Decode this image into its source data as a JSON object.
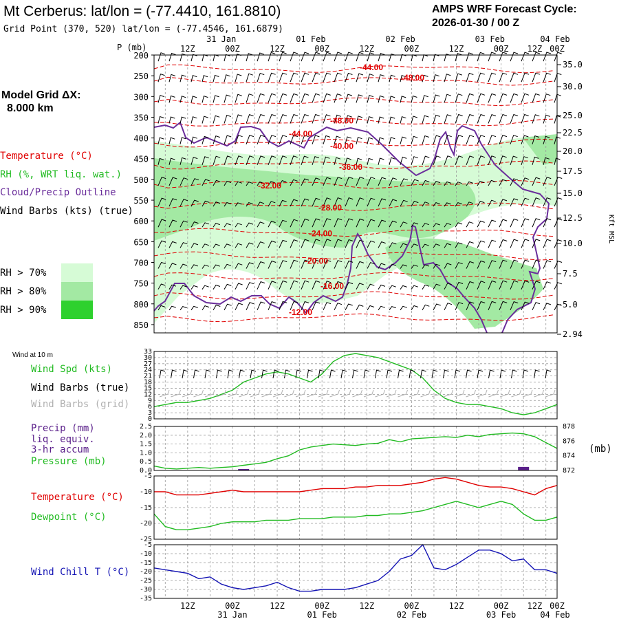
{
  "header": {
    "title": "Mt Cerberus:  lat/lon = (-77.4410, 161.8810)",
    "grid_point": "Grid Point (370, 520) lat/lon = (-77.4546, 161.6879)",
    "cycle_title": "AMPS WRF Forecast Cycle:",
    "cycle_value": "2026-01-30 / 00  Z"
  },
  "model": {
    "label": "Model Grid ΔX:",
    "value": "8.000 km"
  },
  "legend_top": {
    "temperature": "Temperature (°C)",
    "rh": "RH (%, WRT liq. wat.)",
    "cloud": "Cloud/Precip Outline",
    "wind": "Wind Barbs (kts) (true)",
    "rh70": "RH > 70%",
    "rh80": "RH > 80%",
    "rh90": "RH > 90%"
  },
  "colors": {
    "temperature": "#e00000",
    "rh": "#22bb22",
    "cloud": "#6a2d9b",
    "wind": "#000000",
    "grid_wind": "#b0b0b0",
    "precip": "#5a1f8a",
    "chill": "#1414b4",
    "rh70": "#d6fbd6",
    "rh80": "#a3e9a3",
    "rh90": "#2ed12e"
  },
  "time_axis": {
    "top_dates": [
      "31 Jan",
      "01 Feb",
      "02 Feb",
      "03 Feb",
      "04 Feb"
    ],
    "top_hours": [
      "12Z",
      "00Z",
      "12Z",
      "00Z",
      "12Z",
      "00Z",
      "12Z",
      "00Z",
      "12Z",
      "00Z"
    ],
    "bottom_hours": [
      "12Z",
      "00Z",
      "12Z",
      "00Z",
      "12Z",
      "00Z",
      "12Z",
      "00Z",
      "12Z",
      "00Z"
    ],
    "bottom_dates": [
      "31 Jan",
      "01 Feb",
      "02 Feb",
      "03 Feb",
      "04 Feb"
    ]
  },
  "chart_data": [
    {
      "type": "heatmap",
      "title": "Time-height cross section",
      "ylabel": "P (mb)",
      "right_label": "Kft MSL",
      "pressure_levels": [
        200,
        250,
        300,
        350,
        400,
        450,
        500,
        550,
        600,
        650,
        700,
        750,
        800,
        850
      ],
      "kft_ticks": [
        "35.0",
        "30.0",
        "25.0",
        "22.5",
        "20.0",
        "17.5",
        "15.0",
        "12.5",
        "10.0",
        "7.5",
        "5.0",
        "2.94"
      ],
      "temperature_contours": [
        {
          "label": "-44.00",
          "p": 230
        },
        {
          "label": "-48.00",
          "p": 255
        },
        {
          "label": "-48.00",
          "p": 358
        },
        {
          "label": "-44.00",
          "p": 390
        },
        {
          "label": "-40.00",
          "p": 420
        },
        {
          "label": "-36.00",
          "p": 470
        },
        {
          "label": "-32.00",
          "p": 515
        },
        {
          "label": "-28.00",
          "p": 568
        },
        {
          "label": "-24.00",
          "p": 630
        },
        {
          "label": "-20.00",
          "p": 697
        },
        {
          "label": "-16.00",
          "p": 757
        },
        {
          "label": "-12.00",
          "p": 820
        }
      ]
    },
    {
      "type": "line",
      "title": "Wind at 10 m",
      "series": [
        {
          "name": "Wind Spd (kts)",
          "x": [
            0,
            6,
            12,
            18,
            24,
            30,
            36,
            42,
            48,
            54,
            60,
            66,
            72,
            78,
            84,
            90,
            96,
            102,
            108,
            114,
            120,
            126,
            132,
            138,
            144,
            150,
            156,
            162,
            168,
            174,
            180,
            186,
            192,
            198,
            204,
            210,
            216
          ],
          "values": [
            6,
            7,
            8,
            8,
            9,
            10,
            12,
            14,
            18,
            20,
            22,
            23,
            22,
            20,
            18,
            22,
            28,
            31,
            32,
            31,
            30,
            28,
            26,
            24,
            20,
            14,
            10,
            8,
            7,
            7,
            6,
            5,
            3,
            2,
            3,
            5,
            7
          ]
        }
      ],
      "ylim": [
        0,
        33
      ],
      "yticks": [
        "33",
        "30",
        "27",
        "24",
        "21",
        "18",
        "15",
        "12",
        "9",
        "6",
        "3",
        "0"
      ],
      "labels": {
        "speed": "Wind Spd (kts)",
        "barbs_true": "Wind Barbs (true)",
        "barbs_grid": "Wind Barbs (grid)",
        "header": "Wind at 10 m"
      }
    },
    {
      "type": "bar",
      "title": "Precip / Pressure",
      "series": [
        {
          "name": "Precip 3-hr accum (mm)",
          "x": [
            0,
            6,
            12,
            18,
            24,
            30,
            36,
            42,
            48,
            54,
            60,
            66,
            72,
            78,
            84,
            90,
            96,
            102,
            108,
            114,
            120,
            126,
            132,
            138,
            144,
            150,
            156,
            162,
            168,
            174,
            180,
            186,
            192,
            198,
            204,
            210,
            216
          ],
          "values": [
            0,
            0,
            0,
            0,
            0,
            0,
            0,
            0,
            0.01,
            0,
            0,
            0,
            0,
            0,
            0,
            0,
            0,
            0,
            0,
            0,
            0,
            0,
            0,
            0,
            0,
            0,
            0,
            0,
            0,
            0,
            0,
            0,
            0,
            0.05,
            0,
            0,
            0
          ]
        },
        {
          "name": "Pressure (mb)",
          "x": [
            0,
            6,
            12,
            18,
            24,
            30,
            36,
            42,
            48,
            54,
            60,
            66,
            72,
            78,
            84,
            90,
            96,
            102,
            108,
            114,
            120,
            126,
            132,
            138,
            144,
            150,
            156,
            162,
            168,
            174,
            180,
            186,
            192,
            198,
            204,
            210,
            216
          ],
          "values": [
            872.6,
            872.3,
            872.2,
            872.3,
            872.4,
            872.3,
            872.4,
            872.5,
            872.7,
            872.9,
            873.1,
            873.6,
            874.0,
            874.8,
            875.2,
            875.4,
            875.6,
            875.5,
            875.4,
            875.6,
            875.7,
            876.2,
            875.9,
            876.3,
            876.4,
            876.5,
            876.6,
            876.5,
            876.8,
            876.6,
            876.9,
            877.0,
            877.1,
            877.0,
            876.6,
            875.8,
            875.0
          ]
        }
      ],
      "left_ylim": [
        0,
        2.5
      ],
      "left_ticks": [
        "2.5",
        "2.0",
        "1.5",
        "1.0",
        "0.5",
        "0.0"
      ],
      "right_ylim": [
        872,
        878
      ],
      "right_ticks": [
        "878",
        "876",
        "874",
        "872"
      ],
      "labels": {
        "precip": "Precip (mm)",
        "liq": "liq. equiv.",
        "accum": "3-hr accum",
        "pressure": "Pressure (mb)",
        "units": "(mb)"
      }
    },
    {
      "type": "line",
      "title": "Temperature / Dewpoint",
      "series": [
        {
          "name": "Temperature (°C)",
          "x": [
            0,
            6,
            12,
            18,
            24,
            30,
            36,
            42,
            48,
            54,
            60,
            66,
            72,
            78,
            84,
            90,
            96,
            102,
            108,
            114,
            120,
            126,
            132,
            138,
            144,
            150,
            156,
            162,
            168,
            174,
            180,
            186,
            192,
            198,
            204,
            210,
            216
          ],
          "values": [
            -10,
            -10,
            -11,
            -11,
            -11,
            -10.5,
            -10,
            -9.5,
            -10,
            -10,
            -10,
            -10,
            -10,
            -10,
            -9.5,
            -9,
            -9,
            -9,
            -8.5,
            -8.5,
            -8,
            -8,
            -8,
            -7.5,
            -7,
            -6,
            -5.5,
            -6,
            -7,
            -8,
            -8.5,
            -8.5,
            -9,
            -10,
            -11,
            -9,
            -8
          ]
        },
        {
          "name": "Dewpoint (°C)",
          "x": [
            0,
            6,
            12,
            18,
            24,
            30,
            36,
            42,
            48,
            54,
            60,
            66,
            72,
            78,
            84,
            90,
            96,
            102,
            108,
            114,
            120,
            126,
            132,
            138,
            144,
            150,
            156,
            162,
            168,
            174,
            180,
            186,
            192,
            198,
            204,
            210,
            216
          ],
          "values": [
            -17,
            -21,
            -22,
            -22,
            -21.5,
            -21,
            -20,
            -19.5,
            -19.5,
            -19.5,
            -19,
            -19,
            -19,
            -18.5,
            -18.5,
            -18.5,
            -18,
            -18,
            -18,
            -17.5,
            -17.5,
            -17,
            -17,
            -16.5,
            -16,
            -15,
            -14,
            -13,
            -14,
            -15,
            -14,
            -13,
            -14,
            -17,
            -19,
            -19,
            -18
          ]
        }
      ],
      "ylim": [
        -25,
        -5
      ],
      "yticks": [
        "-5",
        "-10",
        "-15",
        "-20",
        "-25"
      ]
    },
    {
      "type": "line",
      "title": "Wind Chill",
      "series": [
        {
          "name": "Wind Chill T (°C)",
          "x": [
            0,
            6,
            12,
            18,
            24,
            30,
            36,
            42,
            48,
            54,
            60,
            66,
            72,
            78,
            84,
            90,
            96,
            102,
            108,
            114,
            120,
            126,
            132,
            138,
            144,
            150,
            156,
            162,
            168,
            174,
            180,
            186,
            192,
            198,
            204,
            210,
            216
          ],
          "values": [
            -18,
            -19,
            -20,
            -21,
            -24,
            -23,
            -27,
            -29,
            -30,
            -29,
            -28,
            -26,
            -29,
            -31,
            -31,
            -30,
            -30,
            -30,
            -29,
            -27,
            -25,
            -20,
            -13,
            -11,
            -5,
            -18,
            -19,
            -16,
            -12,
            -8,
            -8,
            -10,
            -14,
            -13,
            -19,
            -19,
            -21
          ]
        }
      ],
      "ylim": [
        -35,
        -5
      ],
      "yticks": [
        "-5",
        "-10",
        "-15",
        "-20",
        "-25",
        "-30",
        "-35"
      ]
    }
  ],
  "lower_legends": {
    "temperature": "Temperature (°C)",
    "dewpoint": "Dewpoint (°C)",
    "chill": "Wind Chill T (°C)"
  }
}
